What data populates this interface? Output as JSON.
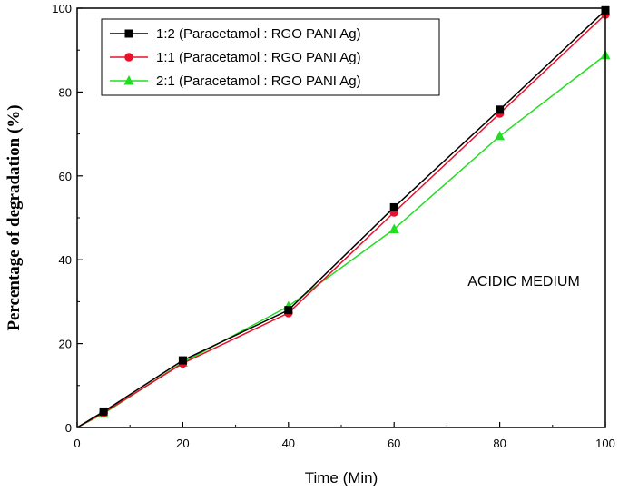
{
  "chart_data": {
    "type": "line",
    "title": "",
    "xlabel": "Time (Min)",
    "ylabel": "Percentage of degradation (%)",
    "xlim": [
      0,
      100
    ],
    "ylim": [
      0,
      100
    ],
    "xticks": [
      0,
      20,
      40,
      60,
      80,
      100
    ],
    "yticks": [
      0,
      20,
      40,
      60,
      80,
      100
    ],
    "x": [
      0,
      5,
      20,
      40,
      60,
      80,
      100
    ],
    "legend_position": "top-left",
    "series": [
      {
        "name": "1:2 (Paracetamol : RGO PANI Ag)",
        "color": "#000000",
        "marker": "square",
        "values": [
          0,
          3.8,
          16,
          28,
          52.5,
          75.8,
          99.5
        ]
      },
      {
        "name": "1:1 (Paracetamol : RGO PANI Ag)",
        "color": "#e8102a",
        "marker": "circle",
        "values": [
          0,
          3.5,
          15.3,
          27.3,
          51.3,
          74.9,
          98.5
        ]
      },
      {
        "name": "2:1 (Paracetamol : RGO PANI Ag)",
        "color": "#22dd22",
        "marker": "triangle",
        "values": [
          0,
          3.3,
          15.5,
          28.9,
          47.3,
          69.5,
          88.8
        ]
      }
    ],
    "annotations": [
      "ACIDIC MEDIUM"
    ]
  }
}
